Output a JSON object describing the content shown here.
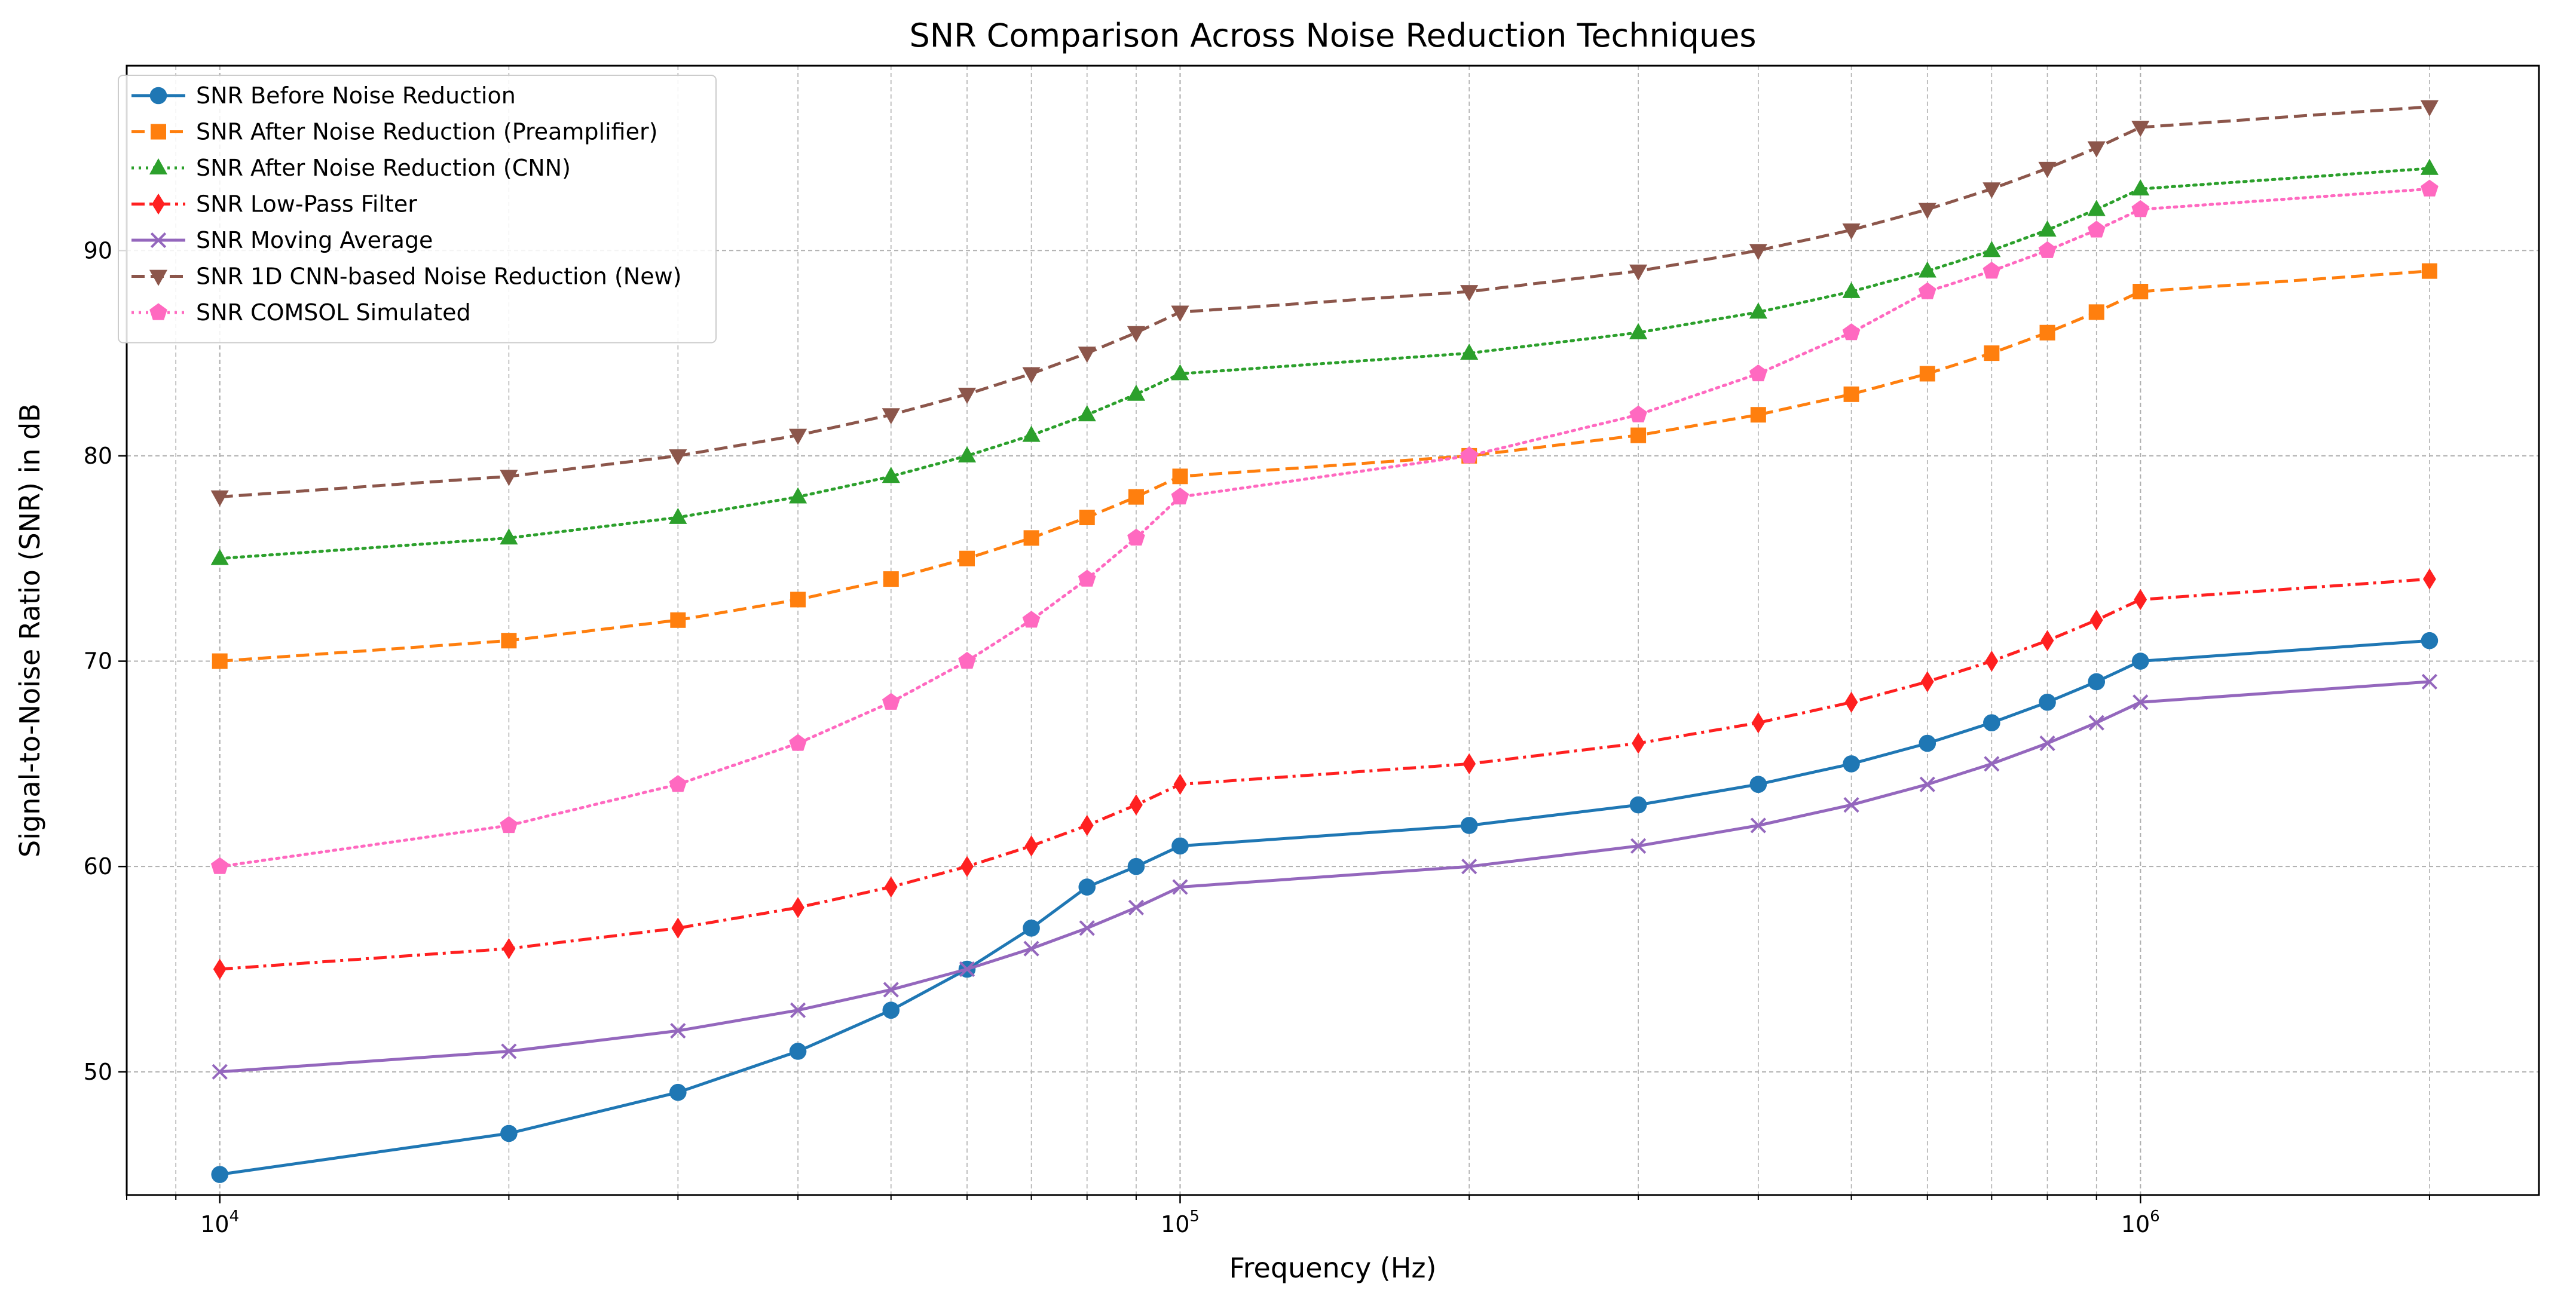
{
  "chart_data": {
    "type": "line",
    "title": "SNR Comparison Across Noise Reduction Techniques",
    "xlabel": "Frequency (Hz)",
    "ylabel": "Signal-to-Noise Ratio (SNR) in dB",
    "xscale": "log",
    "xlim": [
      8000,
      2600000
    ],
    "ylim": [
      44,
      99
    ],
    "grid": true,
    "legend_position": "upper-left",
    "x": [
      10000,
      20000,
      30000,
      40000,
      50000,
      60000,
      70000,
      80000,
      90000,
      100000,
      200000,
      300000,
      400000,
      500000,
      600000,
      700000,
      800000,
      900000,
      1000000,
      2000000
    ],
    "x_ticks": [
      {
        "value": 10000,
        "base": "10",
        "exp": "4"
      },
      {
        "value": 100000,
        "base": "10",
        "exp": "5"
      },
      {
        "value": 1000000,
        "base": "10",
        "exp": "6"
      }
    ],
    "y_ticks": [
      50,
      60,
      70,
      80,
      90
    ],
    "series": [
      {
        "name": "SNR Before Noise Reduction",
        "color": "#1f77b4",
        "dash": "solid",
        "marker": "circle",
        "values": [
          45,
          47,
          49,
          51,
          53,
          55,
          57,
          59,
          60,
          61,
          62,
          63,
          64,
          65,
          66,
          67,
          68,
          69,
          70,
          71
        ]
      },
      {
        "name": "SNR After Noise Reduction (Preamplifier)",
        "color": "#ff7f0e",
        "dash": "dashed",
        "marker": "square",
        "values": [
          70,
          71,
          72,
          73,
          74,
          75,
          76,
          77,
          78,
          79,
          80,
          81,
          82,
          83,
          84,
          85,
          86,
          87,
          88,
          89
        ]
      },
      {
        "name": "SNR After Noise Reduction (CNN)",
        "color": "#2ca02c",
        "dash": "dotted",
        "marker": "triangle-up",
        "values": [
          75,
          76,
          77,
          78,
          79,
          80,
          81,
          82,
          83,
          84,
          85,
          86,
          87,
          88,
          89,
          90,
          91,
          92,
          93,
          94
        ]
      },
      {
        "name": "SNR Low-Pass Filter",
        "color": "#ff2020",
        "dash": "dashdot",
        "marker": "diamond",
        "values": [
          55,
          56,
          57,
          58,
          59,
          60,
          61,
          62,
          63,
          64,
          65,
          66,
          67,
          68,
          69,
          70,
          71,
          72,
          73,
          74
        ]
      },
      {
        "name": "SNR Moving Average",
        "color": "#9467bd",
        "dash": "solid",
        "marker": "x",
        "values": [
          50,
          51,
          52,
          53,
          54,
          55,
          56,
          57,
          58,
          59,
          60,
          61,
          62,
          63,
          64,
          65,
          66,
          67,
          68,
          69
        ]
      },
      {
        "name": "SNR 1D CNN-based Noise Reduction (New)",
        "color": "#8c564b",
        "dash": "dashed",
        "marker": "triangle-down",
        "values": [
          78,
          79,
          80,
          81,
          82,
          83,
          84,
          85,
          86,
          87,
          88,
          89,
          90,
          91,
          92,
          93,
          94,
          95,
          96,
          97
        ]
      },
      {
        "name": "SNR COMSOL Simulated",
        "color": "#ff69c0",
        "dash": "dotted",
        "marker": "pentagon",
        "values": [
          60,
          62,
          64,
          66,
          68,
          70,
          72,
          74,
          76,
          78,
          80,
          82,
          84,
          86,
          88,
          89,
          90,
          91,
          92,
          93
        ]
      }
    ]
  }
}
